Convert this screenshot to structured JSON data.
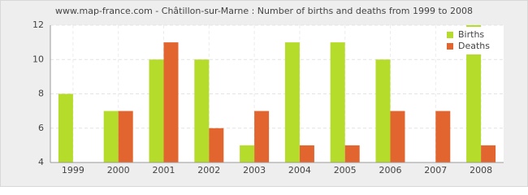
{
  "chart_data": {
    "type": "bar",
    "title": "www.map-france.com - Châtillon-sur-Marne : Number of births and deaths from 1999 to 2008",
    "categories": [
      "1999",
      "2000",
      "2001",
      "2002",
      "2003",
      "2004",
      "2005",
      "2006",
      "2007",
      "2008"
    ],
    "series": [
      {
        "name": "Births",
        "color": "#b5dc2a",
        "values": [
          8,
          7,
          10,
          10,
          5,
          11,
          11,
          10,
          4,
          12
        ]
      },
      {
        "name": "Deaths",
        "color": "#e2652f",
        "values": [
          4,
          7,
          11,
          6,
          7,
          5,
          5,
          7,
          7,
          5
        ]
      }
    ],
    "ylim": [
      4,
      12
    ],
    "yticks": [
      4,
      6,
      8,
      10,
      12
    ],
    "grid": true,
    "legend": "top-right"
  }
}
